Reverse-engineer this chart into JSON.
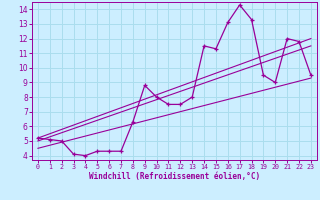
{
  "xlabel": "Windchill (Refroidissement éolien,°C)",
  "bg_color": "#cceeff",
  "line_color": "#990099",
  "grid_color": "#aaddee",
  "xlim": [
    -0.5,
    23.5
  ],
  "ylim": [
    3.7,
    14.5
  ],
  "xticks": [
    0,
    1,
    2,
    3,
    4,
    5,
    6,
    7,
    8,
    9,
    10,
    11,
    12,
    13,
    14,
    15,
    16,
    17,
    18,
    19,
    20,
    21,
    22,
    23
  ],
  "yticks": [
    4,
    5,
    6,
    7,
    8,
    9,
    10,
    11,
    12,
    13,
    14
  ],
  "curve1_x": [
    0,
    1,
    2,
    3,
    4,
    5,
    6,
    7,
    8,
    9,
    10,
    11,
    12,
    13,
    14,
    15,
    16,
    17,
    18,
    19,
    20,
    21,
    22,
    23
  ],
  "curve1_y": [
    5.2,
    5.1,
    5.0,
    4.1,
    4.0,
    4.3,
    4.3,
    4.3,
    6.3,
    8.8,
    8.0,
    7.5,
    7.5,
    8.0,
    11.5,
    11.3,
    13.1,
    14.3,
    13.3,
    9.5,
    9.0,
    12.0,
    11.8,
    9.5
  ],
  "line1_x": [
    0,
    23
  ],
  "line1_y": [
    4.5,
    9.3
  ],
  "line2_x": [
    0,
    23
  ],
  "line2_y": [
    5.0,
    11.5
  ],
  "line3_x": [
    0,
    23
  ],
  "line3_y": [
    5.2,
    12.0
  ]
}
